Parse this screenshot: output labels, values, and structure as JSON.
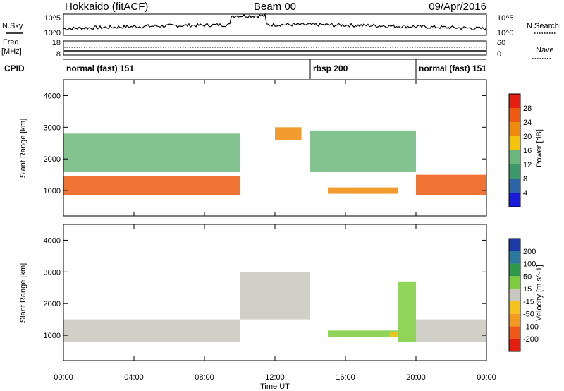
{
  "header": {
    "station": "Hokkaido (fitACF)",
    "beam": "Beam 00",
    "date": "09/Apr/2016"
  },
  "top_panels": {
    "nsky_label": "N.Sky",
    "nsky_ticks": [
      "10^5",
      "10^0"
    ],
    "nsearch_label": "N.Search",
    "nsearch_ticks": [
      "10^5",
      "10^0"
    ],
    "freq_label": "Freq.",
    "freq_unit": "[MHz]",
    "freq_ticks": [
      "18",
      "8"
    ],
    "nave_label": "Nave",
    "nave_ticks": [
      "60",
      "0"
    ],
    "cpid_label": "CPID"
  },
  "cpid_segments": [
    {
      "label": "normal (fast) 151",
      "start_hr": 0,
      "end_hr": 14
    },
    {
      "label": "rbsp 200",
      "start_hr": 14,
      "end_hr": 20
    },
    {
      "label": "normal (fast) 151",
      "start_hr": 20,
      "end_hr": 24
    }
  ],
  "x_axis": {
    "label": "Time UT",
    "range_hours": [
      0,
      24
    ],
    "ticks": [
      "00:00",
      "04:00",
      "08:00",
      "12:00",
      "16:00",
      "20:00",
      "00:00"
    ]
  },
  "colors": {
    "power_scale": [
      "#1a1adc",
      "#2c64a8",
      "#3c9a6a",
      "#6cb87c",
      "#f5c30a",
      "#f08a0a",
      "#ee5a10",
      "#e61e10"
    ],
    "velocity_scale": [
      "#e61e10",
      "#f05a18",
      "#f59a20",
      "#f5c31a",
      "#c8c8c0",
      "#7ccc3c",
      "#2a9a4a",
      "#2a7aa0",
      "#1a3aa8"
    ],
    "no_data": "#ffffff"
  },
  "chart_data": [
    {
      "type": "heatmap",
      "name": "power",
      "ylabel": "Slant Range [km]",
      "y_ticks": [
        1000,
        2000,
        3000,
        4000
      ],
      "ylim": [
        200,
        4500
      ],
      "colorbar": {
        "label": "Power [dB]",
        "ticks": [
          4,
          8,
          12,
          16,
          20,
          24,
          28
        ],
        "range": [
          0,
          32
        ]
      },
      "echo_regions": [
        {
          "t": [
            0,
            10
          ],
          "range_km": [
            850,
            1450
          ],
          "value": 26,
          "desc": "main band"
        },
        {
          "t": [
            0,
            10
          ],
          "range_km": [
            1600,
            2800
          ],
          "value": 14,
          "desc": "upper streaks"
        },
        {
          "t": [
            12,
            13.5
          ],
          "range_km": [
            2600,
            3000
          ],
          "value": 20
        },
        {
          "t": [
            14,
            20
          ],
          "range_km": [
            1600,
            2900
          ],
          "value": 12
        },
        {
          "t": [
            15,
            19
          ],
          "range_km": [
            900,
            1100
          ],
          "value": 22
        },
        {
          "t": [
            20,
            24
          ],
          "range_km": [
            850,
            1500
          ],
          "value": 26
        }
      ]
    },
    {
      "type": "heatmap",
      "name": "velocity",
      "ylabel": "Slant Range [km]",
      "y_ticks": [
        1000,
        2000,
        3000,
        4000
      ],
      "ylim": [
        200,
        4500
      ],
      "colorbar": {
        "label": "Velocity [m s^-1]",
        "ticks": [
          -200,
          -100,
          -50,
          -15,
          15,
          50,
          100,
          200
        ],
        "range": [
          -250,
          250
        ]
      },
      "echo_regions": [
        {
          "t": [
            0,
            10
          ],
          "range_km": [
            800,
            1500
          ],
          "value": 0,
          "desc": "near-zero gray"
        },
        {
          "t": [
            10,
            14
          ],
          "range_km": [
            1500,
            3000
          ],
          "value": 0
        },
        {
          "t": [
            15,
            19
          ],
          "range_km": [
            950,
            1150
          ],
          "value": 60
        },
        {
          "t": [
            18.5,
            19
          ],
          "range_km": [
            950,
            1100
          ],
          "value": -60
        },
        {
          "t": [
            19,
            20
          ],
          "range_km": [
            800,
            2700
          ],
          "value": 70
        },
        {
          "t": [
            20,
            24
          ],
          "range_km": [
            800,
            1500
          ],
          "value": 0
        }
      ]
    }
  ]
}
